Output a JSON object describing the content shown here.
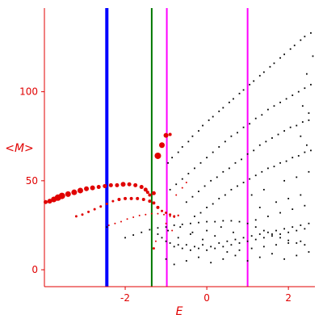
{
  "chart_data": {
    "type": "scatter",
    "title": "",
    "xlabel": "E",
    "ylabel": "<M>",
    "xlim": [
      -3.98,
      2.65
    ],
    "ylim": [
      -9.5,
      147
    ],
    "x_ticks": [
      -2,
      0,
      2
    ],
    "x_tick_labels": [
      "-2",
      "0",
      "2"
    ],
    "y_ticks": [
      0,
      50,
      100
    ],
    "y_tick_labels": [
      "0",
      "50",
      "100"
    ],
    "grid": false,
    "legend": "none",
    "colors": {
      "axis": "#e00000",
      "red_points": "#e00000",
      "black_points": "#000000",
      "blue_line": "#0000ff",
      "green_line": "#007700",
      "magenta_line": "#ff00ff"
    },
    "vertical_lines": [
      {
        "x": -2.45,
        "color": "#0000ff",
        "width": 4
      },
      {
        "x": -1.35,
        "color": "#007700",
        "width": 2
      },
      {
        "x": -0.98,
        "color": "#ff00ff",
        "width": 2
      },
      {
        "x": 1.0,
        "color": "#ff00ff",
        "width": 2
      }
    ],
    "series": [
      {
        "color": "#e00000",
        "description": "large red points (upper left branch)",
        "points": [
          [
            -3.95,
            38,
            2.5
          ],
          [
            -3.85,
            38.5,
            3
          ],
          [
            -3.75,
            39.5,
            3.5
          ],
          [
            -3.65,
            40.5,
            4
          ],
          [
            -3.55,
            41.5,
            4
          ],
          [
            -3.4,
            42.5,
            3.5
          ],
          [
            -3.25,
            43.5,
            3.5
          ],
          [
            -3.1,
            44.5,
            3.5
          ],
          [
            -2.95,
            45.5,
            3
          ],
          [
            -2.8,
            46,
            3
          ],
          [
            -2.65,
            46.5,
            2.5
          ],
          [
            -2.5,
            47,
            2.5
          ],
          [
            -2.35,
            47.5,
            2.5
          ],
          [
            -2.2,
            47.5,
            2.5
          ],
          [
            -2.05,
            48,
            3
          ],
          [
            -1.9,
            48,
            2.5
          ],
          [
            -1.75,
            47.5,
            2.5
          ],
          [
            -1.6,
            46.5,
            2.5
          ],
          [
            -1.5,
            45,
            2.5
          ],
          [
            -1.45,
            43.5,
            2
          ],
          [
            -1.4,
            42,
            2
          ],
          [
            -1.3,
            43,
            2.5
          ],
          [
            -1.2,
            64,
            4
          ],
          [
            -1.1,
            70,
            3.5
          ],
          [
            -1.0,
            75.5,
            3
          ],
          [
            -0.9,
            76,
            2
          ]
        ]
      },
      {
        "color": "#e00000",
        "description": "medium red points (middle branch)",
        "points": [
          [
            -3.2,
            30,
            1.5
          ],
          [
            -3.05,
            31,
            1.5
          ],
          [
            -2.9,
            32.5,
            1.5
          ],
          [
            -2.75,
            34,
            1.5
          ],
          [
            -2.6,
            35.5,
            1.5
          ],
          [
            -2.45,
            37,
            1.5
          ],
          [
            -2.3,
            38.5,
            1.5
          ],
          [
            -2.15,
            39.5,
            2
          ],
          [
            -2.0,
            40,
            2
          ],
          [
            -1.85,
            40,
            2
          ],
          [
            -1.7,
            40,
            2
          ],
          [
            -1.55,
            39.5,
            2
          ],
          [
            -1.4,
            38.5,
            2
          ],
          [
            -1.3,
            37.5,
            2
          ],
          [
            -1.2,
            35,
            2
          ],
          [
            -1.1,
            33,
            1.5
          ],
          [
            -1.0,
            32,
            1.5
          ],
          [
            -0.9,
            31,
            1.5
          ],
          [
            -0.8,
            30,
            1.5
          ],
          [
            -0.7,
            30.5,
            1.2
          ],
          [
            -0.75,
            42,
            1
          ],
          [
            -0.6,
            46,
            1
          ],
          [
            -0.5,
            49,
            1
          ]
        ]
      },
      {
        "color": "#e00000",
        "description": "small red points (lower branch)",
        "points": [
          [
            -2.4,
            25,
            1
          ],
          [
            -2.25,
            26,
            1
          ],
          [
            -2.1,
            27,
            1
          ],
          [
            -1.95,
            28.5,
            1
          ],
          [
            -1.8,
            29.5,
            1
          ],
          [
            -1.65,
            30.5,
            1
          ],
          [
            -1.5,
            31,
            1
          ],
          [
            -1.35,
            31.5,
            1
          ],
          [
            -1.2,
            31.5,
            1
          ],
          [
            -1.05,
            31,
            1
          ],
          [
            -0.9,
            30,
            1
          ],
          [
            -0.8,
            29.5,
            1
          ],
          [
            -1.3,
            12,
            1.5
          ],
          [
            -1.0,
            26,
            1
          ],
          [
            -0.85,
            22,
            1
          ],
          [
            -1.25,
            16,
            1
          ]
        ]
      },
      {
        "color": "#000000",
        "description": "black curve A (upper)",
        "points": [
          [
            -0.95,
            60
          ],
          [
            -0.7,
            66
          ],
          [
            -0.45,
            72
          ],
          [
            -0.2,
            78
          ],
          [
            0.05,
            84
          ],
          [
            0.3,
            89
          ],
          [
            0.55,
            94
          ],
          [
            0.8,
            99
          ],
          [
            1.05,
            104
          ],
          [
            1.3,
            109
          ],
          [
            1.55,
            114
          ],
          [
            1.8,
            119
          ],
          [
            2.05,
            124
          ],
          [
            2.3,
            129
          ],
          [
            2.55,
            133
          ],
          [
            -0.85,
            63
          ],
          [
            -0.6,
            69
          ],
          [
            -0.35,
            75
          ],
          [
            -0.1,
            81
          ],
          [
            0.15,
            86
          ],
          [
            0.4,
            91
          ],
          [
            0.65,
            96
          ],
          [
            0.9,
            101
          ],
          [
            1.15,
            106
          ],
          [
            1.4,
            111
          ],
          [
            1.65,
            116
          ],
          [
            1.9,
            121
          ],
          [
            2.15,
            126
          ],
          [
            2.4,
            131
          ]
        ]
      },
      {
        "color": "#000000",
        "description": "black curve B",
        "points": [
          [
            -0.9,
            45
          ],
          [
            -0.6,
            51
          ],
          [
            -0.3,
            57
          ],
          [
            0.0,
            63
          ],
          [
            0.3,
            69
          ],
          [
            0.6,
            75
          ],
          [
            0.9,
            80
          ],
          [
            1.2,
            85
          ],
          [
            1.5,
            90
          ],
          [
            1.8,
            94
          ],
          [
            2.1,
            98
          ],
          [
            2.4,
            102
          ],
          [
            -0.75,
            48
          ],
          [
            -0.45,
            54
          ],
          [
            -0.15,
            60
          ],
          [
            0.15,
            66
          ],
          [
            0.45,
            72
          ],
          [
            0.75,
            77
          ],
          [
            1.05,
            82
          ],
          [
            1.35,
            87
          ],
          [
            1.65,
            92
          ],
          [
            1.95,
            96
          ],
          [
            2.25,
            100
          ],
          [
            2.55,
            104
          ]
        ]
      },
      {
        "color": "#000000",
        "description": "black curve C",
        "points": [
          [
            -0.5,
            38
          ],
          [
            -0.2,
            44
          ],
          [
            0.1,
            50
          ],
          [
            0.4,
            55
          ],
          [
            0.7,
            60
          ],
          [
            1.0,
            65
          ],
          [
            1.3,
            70
          ],
          [
            1.6,
            74
          ],
          [
            1.9,
            78
          ],
          [
            2.2,
            81
          ],
          [
            2.5,
            84
          ],
          [
            -0.35,
            41
          ],
          [
            -0.05,
            47
          ],
          [
            0.25,
            52
          ],
          [
            0.55,
            57
          ],
          [
            0.85,
            62
          ],
          [
            1.15,
            67
          ],
          [
            1.45,
            72
          ],
          [
            1.75,
            76
          ],
          [
            2.05,
            80
          ],
          [
            2.35,
            83
          ]
        ]
      },
      {
        "color": "#000000",
        "description": "black curve D",
        "points": [
          [
            -0.3,
            30
          ],
          [
            0.0,
            35
          ],
          [
            0.3,
            40
          ],
          [
            0.6,
            45
          ],
          [
            0.9,
            49
          ],
          [
            1.2,
            53
          ],
          [
            1.5,
            57
          ],
          [
            1.8,
            60
          ],
          [
            2.1,
            63
          ],
          [
            2.4,
            66
          ],
          [
            -0.15,
            32
          ],
          [
            0.15,
            37
          ],
          [
            0.45,
            42
          ],
          [
            0.75,
            47
          ],
          [
            1.05,
            51
          ],
          [
            1.35,
            55
          ],
          [
            1.65,
            58
          ],
          [
            1.95,
            61
          ],
          [
            2.25,
            64
          ],
          [
            2.55,
            67
          ]
        ]
      },
      {
        "color": "#000000",
        "description": "black curve E (lower arc)",
        "points": [
          [
            -2.45,
            24
          ],
          [
            -2.0,
            18
          ],
          [
            -1.8,
            19.5
          ],
          [
            -1.6,
            21
          ],
          [
            -1.4,
            22.5
          ],
          [
            -1.2,
            23.5
          ],
          [
            -1.0,
            24
          ],
          [
            -0.8,
            25
          ],
          [
            -0.6,
            25.5
          ],
          [
            -0.4,
            26
          ],
          [
            -0.2,
            26.5
          ],
          [
            0.0,
            27
          ],
          [
            0.2,
            27
          ],
          [
            0.4,
            27.5
          ],
          [
            0.6,
            27.5
          ],
          [
            0.8,
            27
          ],
          [
            1.0,
            26
          ],
          [
            1.2,
            24
          ],
          [
            1.4,
            22
          ],
          [
            1.6,
            20
          ],
          [
            1.8,
            18
          ],
          [
            2.0,
            16.5
          ],
          [
            2.2,
            15
          ],
          [
            2.4,
            14
          ]
        ]
      },
      {
        "color": "#000000",
        "description": "black scattered cloud (bottom)",
        "points": [
          [
            -1.2,
            20
          ],
          [
            -1.1,
            18
          ],
          [
            -1.0,
            16
          ],
          [
            -0.9,
            15
          ],
          [
            -0.8,
            13
          ],
          [
            -0.7,
            14
          ],
          [
            -0.6,
            12
          ],
          [
            -0.5,
            14
          ],
          [
            -0.4,
            11
          ],
          [
            -0.3,
            13
          ],
          [
            -0.2,
            12
          ],
          [
            -0.1,
            14
          ],
          [
            0.0,
            11
          ],
          [
            0.1,
            13
          ],
          [
            0.2,
            12
          ],
          [
            0.3,
            15
          ],
          [
            0.4,
            13
          ],
          [
            0.5,
            16
          ],
          [
            0.6,
            14
          ],
          [
            0.7,
            17
          ],
          [
            0.8,
            15
          ],
          [
            0.9,
            18
          ],
          [
            1.0,
            16
          ],
          [
            1.1,
            19
          ],
          [
            1.2,
            17
          ],
          [
            1.3,
            20
          ],
          [
            1.4,
            18
          ],
          [
            1.5,
            21
          ],
          [
            1.6,
            19
          ],
          [
            1.7,
            22
          ],
          [
            1.8,
            20
          ],
          [
            1.9,
            23
          ],
          [
            2.0,
            21
          ],
          [
            2.1,
            24
          ],
          [
            2.2,
            22
          ],
          [
            2.3,
            25
          ],
          [
            2.4,
            23
          ],
          [
            2.5,
            26
          ],
          [
            -0.7,
            18
          ],
          [
            -0.4,
            20
          ],
          [
            -0.1,
            17
          ],
          [
            0.2,
            19
          ],
          [
            0.5,
            10
          ],
          [
            0.8,
            11
          ],
          [
            1.1,
            12
          ],
          [
            1.4,
            13
          ],
          [
            1.7,
            14
          ],
          [
            2.0,
            15
          ],
          [
            2.3,
            16
          ],
          [
            -1.0,
            6
          ],
          [
            -0.8,
            3
          ],
          [
            -0.5,
            5
          ],
          [
            -0.2,
            7
          ],
          [
            0.1,
            4
          ],
          [
            0.4,
            6
          ],
          [
            0.7,
            8
          ],
          [
            1.0,
            5
          ],
          [
            1.3,
            7
          ],
          [
            1.6,
            9
          ],
          [
            1.9,
            6
          ],
          [
            2.2,
            8
          ],
          [
            2.5,
            10
          ],
          [
            1.2,
            28
          ],
          [
            1.5,
            30
          ],
          [
            1.8,
            32
          ],
          [
            2.1,
            34
          ],
          [
            2.4,
            36
          ],
          [
            1.3,
            35
          ],
          [
            1.7,
            38
          ],
          [
            2.0,
            40
          ],
          [
            2.3,
            42
          ],
          [
            1.1,
            42
          ],
          [
            1.4,
            45
          ],
          [
            1.9,
            50
          ],
          [
            2.2,
            52
          ],
          [
            2.5,
            55
          ],
          [
            -0.95,
            22
          ],
          [
            -0.65,
            24
          ],
          [
            -0.35,
            21
          ],
          [
            0.0,
            22
          ],
          [
            0.35,
            24
          ],
          [
            0.65,
            21
          ],
          [
            2.45,
            70
          ],
          [
            2.3,
            75
          ],
          [
            2.5,
            88
          ],
          [
            2.35,
            92
          ],
          [
            2.45,
            110
          ],
          [
            2.6,
            120
          ]
        ]
      }
    ]
  }
}
